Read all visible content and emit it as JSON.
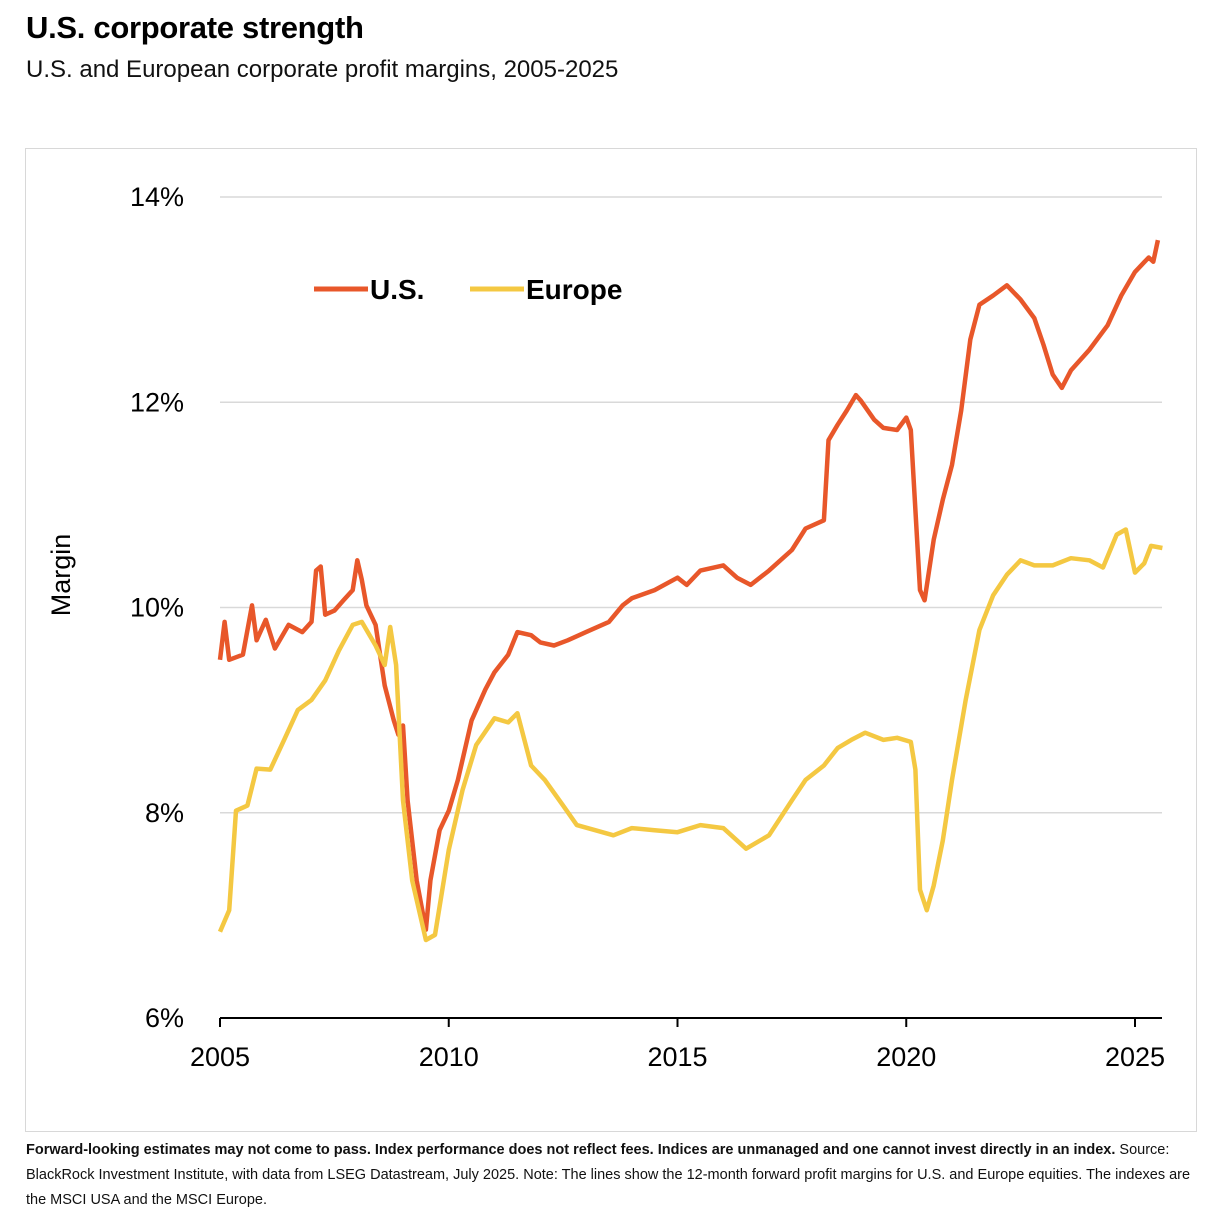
{
  "title": "U.S. corporate strength",
  "subtitle": "U.S. and European corporate profit margins, 2005-2025",
  "footnote": {
    "bold": "Forward-looking estimates may not come to pass. Index performance does not reflect fees. Indices are unmanaged and one cannot invest directly in an index.",
    "text": " Source: BlackRock Investment Institute, with data from LSEG Datastream, July 2025. Note: The lines show the 12-month forward profit margins for U.S. and Europe equities. The indexes are the MSCI USA and the MSCI Europe."
  },
  "chart_data": {
    "type": "line",
    "title": "U.S. corporate strength",
    "xlabel": "",
    "ylabel": "Margin",
    "xlim": [
      2005,
      2025.6
    ],
    "ylim": [
      6,
      14
    ],
    "xticks": [
      2005,
      2010,
      2015,
      2020,
      2025
    ],
    "yticks": [
      6,
      8,
      10,
      12,
      14
    ],
    "ytick_labels": [
      "6%",
      "8%",
      "10%",
      "12%",
      "14%"
    ],
    "grid": "horizontal",
    "legend": "top-left",
    "series": [
      {
        "name": "U.S.",
        "color": "#e8572a",
        "x": [
          2005.0,
          2005.1,
          2005.2,
          2005.5,
          2005.7,
          2005.8,
          2006.0,
          2006.2,
          2006.5,
          2006.8,
          2007.0,
          2007.1,
          2007.2,
          2007.3,
          2007.5,
          2007.7,
          2007.9,
          2008.0,
          2008.1,
          2008.2,
          2008.4,
          2008.6,
          2008.8,
          2008.9,
          2009.0,
          2009.1,
          2009.3,
          2009.5,
          2009.6,
          2009.8,
          2010.0,
          2010.2,
          2010.5,
          2010.8,
          2011.0,
          2011.3,
          2011.5,
          2011.8,
          2012.0,
          2012.3,
          2012.6,
          2013.0,
          2013.5,
          2013.8,
          2014.0,
          2014.5,
          2015.0,
          2015.2,
          2015.5,
          2016.0,
          2016.3,
          2016.6,
          2017.0,
          2017.5,
          2017.8,
          2018.2,
          2018.3,
          2018.5,
          2018.7,
          2018.9,
          2019.0,
          2019.3,
          2019.5,
          2019.8,
          2020.0,
          2020.1,
          2020.3,
          2020.4,
          2020.6,
          2020.8,
          2021.0,
          2021.2,
          2021.4,
          2021.6,
          2021.9,
          2022.2,
          2022.5,
          2022.8,
          2023.0,
          2023.2,
          2023.4,
          2023.6,
          2024.0,
          2024.4,
          2024.7,
          2025.0,
          2025.3,
          2025.4,
          2025.5
        ],
        "values": [
          9.49,
          9.86,
          9.49,
          9.54,
          10.02,
          9.68,
          9.88,
          9.6,
          9.83,
          9.76,
          9.86,
          10.36,
          10.4,
          9.93,
          9.97,
          10.07,
          10.17,
          10.46,
          10.27,
          10.02,
          9.83,
          9.24,
          8.9,
          8.76,
          8.85,
          8.12,
          7.34,
          6.86,
          7.34,
          7.83,
          8.02,
          8.32,
          8.9,
          9.2,
          9.37,
          9.54,
          9.76,
          9.73,
          9.66,
          9.63,
          9.68,
          9.76,
          9.86,
          10.02,
          10.09,
          10.17,
          10.29,
          10.22,
          10.36,
          10.41,
          10.29,
          10.22,
          10.36,
          10.56,
          10.77,
          10.85,
          11.63,
          11.78,
          11.92,
          12.07,
          12.02,
          11.83,
          11.75,
          11.73,
          11.85,
          11.73,
          10.17,
          10.07,
          10.66,
          11.05,
          11.39,
          11.92,
          12.61,
          12.95,
          13.04,
          13.14,
          13.0,
          12.82,
          12.56,
          12.27,
          12.14,
          12.31,
          12.51,
          12.75,
          13.04,
          13.27,
          13.41,
          13.37,
          13.58
        ]
      },
      {
        "name": "Europe",
        "color": "#f4c842",
        "x": [
          2005.0,
          2005.2,
          2005.35,
          2005.6,
          2005.8,
          2006.1,
          2006.4,
          2006.7,
          2007.0,
          2007.3,
          2007.6,
          2007.9,
          2008.1,
          2008.4,
          2008.6,
          2008.72,
          2008.85,
          2009.0,
          2009.2,
          2009.5,
          2009.7,
          2010.0,
          2010.3,
          2010.6,
          2011.0,
          2011.3,
          2011.5,
          2011.8,
          2012.1,
          2012.5,
          2012.8,
          2013.2,
          2013.6,
          2014.0,
          2014.5,
          2015.0,
          2015.5,
          2016.0,
          2016.5,
          2017.0,
          2017.5,
          2017.8,
          2018.2,
          2018.5,
          2018.8,
          2019.1,
          2019.5,
          2019.8,
          2020.1,
          2020.2,
          2020.3,
          2020.45,
          2020.6,
          2020.8,
          2021.0,
          2021.3,
          2021.6,
          2021.9,
          2022.2,
          2022.5,
          2022.8,
          2023.2,
          2023.6,
          2024.0,
          2024.3,
          2024.6,
          2024.8,
          2025.0,
          2025.2,
          2025.35,
          2025.6
        ],
        "values": [
          6.84,
          7.05,
          8.02,
          8.07,
          8.43,
          8.42,
          8.71,
          9.0,
          9.1,
          9.29,
          9.58,
          9.83,
          9.86,
          9.63,
          9.44,
          9.81,
          9.44,
          8.12,
          7.34,
          6.76,
          6.81,
          7.64,
          8.22,
          8.66,
          8.92,
          8.88,
          8.97,
          8.46,
          8.32,
          8.07,
          7.88,
          7.83,
          7.78,
          7.85,
          7.83,
          7.81,
          7.88,
          7.85,
          7.65,
          7.78,
          8.12,
          8.32,
          8.46,
          8.63,
          8.71,
          8.78,
          8.71,
          8.73,
          8.69,
          8.42,
          7.25,
          7.05,
          7.29,
          7.73,
          8.32,
          9.1,
          9.78,
          10.12,
          10.32,
          10.46,
          10.41,
          10.41,
          10.48,
          10.46,
          10.39,
          10.71,
          10.76,
          10.34,
          10.43,
          10.6,
          10.58
        ]
      }
    ]
  }
}
